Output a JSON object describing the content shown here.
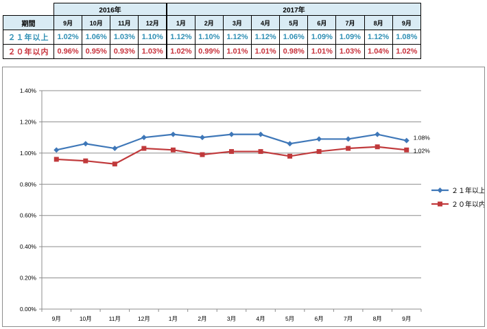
{
  "table": {
    "years": [
      "2016年",
      "2017年"
    ],
    "period_label": "期間",
    "months": [
      "9月",
      "10月",
      "11月",
      "12月",
      "1月",
      "2月",
      "3月",
      "4月",
      "5月",
      "6月",
      "7月",
      "8月",
      "9月"
    ],
    "rows": [
      {
        "label": "２１年以上",
        "values": [
          "1.02%",
          "1.06%",
          "1.03%",
          "1.10%",
          "1.12%",
          "1.10%",
          "1.12%",
          "1.12%",
          "1.06%",
          "1.09%",
          "1.09%",
          "1.12%",
          "1.08%"
        ]
      },
      {
        "label": "２０年以内",
        "values": [
          "0.96%",
          "0.95%",
          "0.93%",
          "1.03%",
          "1.02%",
          "0.99%",
          "1.01%",
          "1.01%",
          "0.98%",
          "1.01%",
          "1.03%",
          "1.04%",
          "1.02%"
        ]
      }
    ]
  },
  "chart_data": {
    "type": "line",
    "categories": [
      "9月",
      "10月",
      "11月",
      "12月",
      "1月",
      "2月",
      "3月",
      "4月",
      "5月",
      "6月",
      "7月",
      "8月",
      "9月"
    ],
    "series": [
      {
        "name": "２１年以上",
        "color": "#3e77b8",
        "marker": "diamond",
        "values": [
          1.02,
          1.06,
          1.03,
          1.1,
          1.12,
          1.1,
          1.12,
          1.12,
          1.06,
          1.09,
          1.09,
          1.12,
          1.08
        ],
        "end_label": "1.08%"
      },
      {
        "name": "２０年以内",
        "color": "#c0393b",
        "marker": "square",
        "values": [
          0.96,
          0.95,
          0.93,
          1.03,
          1.02,
          0.99,
          1.01,
          1.01,
          0.98,
          1.01,
          1.03,
          1.04,
          1.02
        ],
        "end_label": "1.02%"
      }
    ],
    "ylim": [
      0,
      1.4
    ],
    "yticks": [
      "0.00%",
      "0.20%",
      "0.40%",
      "0.60%",
      "0.80%",
      "1.00%",
      "1.20%",
      "1.40%"
    ],
    "grid": true,
    "legend": "right"
  }
}
